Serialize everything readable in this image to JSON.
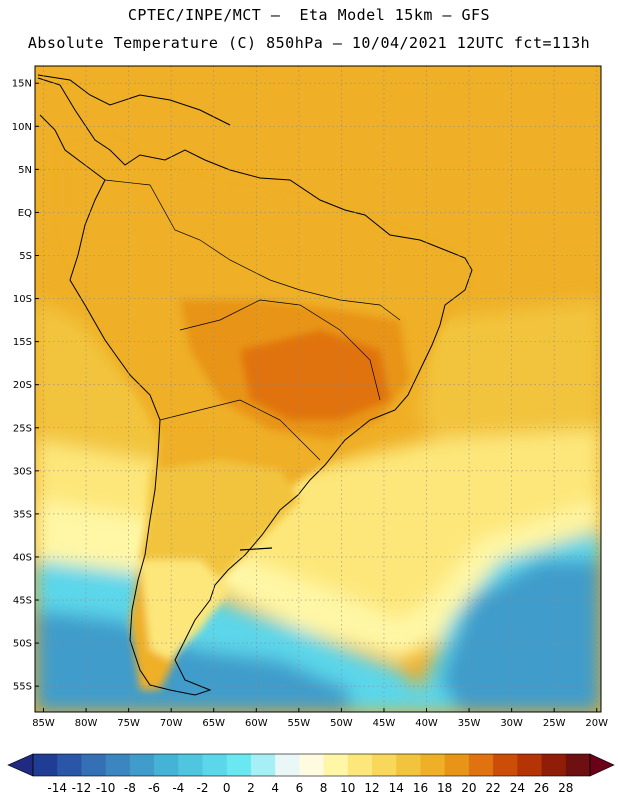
{
  "title": {
    "line1": "CPTEC/INPE/MCT –  Eta Model 15km – GFS",
    "line2": "Absolute Temperature (C) 850hPa – 10/04/2021 12UTC fct=113h"
  },
  "latitude_labels": [
    "15N",
    "10N",
    "5N",
    "EQ",
    "5S",
    "10S",
    "15S",
    "20S",
    "25S",
    "30S",
    "35S",
    "40S",
    "45S",
    "50S",
    "55S"
  ],
  "latitude_values": [
    15,
    10,
    5,
    0,
    -5,
    -10,
    -15,
    -20,
    -25,
    -30,
    -35,
    -40,
    -45,
    -50,
    -55
  ],
  "longitude_labels": [
    "85W",
    "80W",
    "75W",
    "70W",
    "65W",
    "60W",
    "55W",
    "50W",
    "45W",
    "40W",
    "35W",
    "30W",
    "25W",
    "20W"
  ],
  "longitude_values": [
    -85,
    -80,
    -75,
    -70,
    -65,
    -60,
    -55,
    -50,
    -45,
    -40,
    -35,
    -30,
    -25,
    -20
  ],
  "colorbar": {
    "labels": [
      "-14",
      "-12",
      "-10",
      "-8",
      "-6",
      "-4",
      "-2",
      "0",
      "2",
      "4",
      "6",
      "8",
      "10",
      "12",
      "14",
      "16",
      "18",
      "20",
      "22",
      "24",
      "26",
      "28"
    ],
    "colors": [
      "#1f3d94",
      "#2a56a8",
      "#3470b5",
      "#3b86c0",
      "#3f9ccb",
      "#45b3d6",
      "#4fc5e0",
      "#5cd6ea",
      "#6ae8f2",
      "#a6f0f5",
      "#e9f8f6",
      "#fffbe0",
      "#fff7a6",
      "#fde77a",
      "#f8d75a",
      "#f2c43d",
      "#efaf26",
      "#e89418",
      "#e0730f",
      "#cc4d08",
      "#b53405",
      "#8f1d07",
      "#6e0f12"
    ],
    "left_arrow_color": "#1f2a80",
    "right_arrow_color": "#6b0019"
  },
  "map": {
    "lon_range": [
      -86,
      -19.5
    ],
    "lat_range": [
      -58,
      17
    ],
    "ocean_colors": {
      "warm": "#efaf26",
      "mild": "#f2c43d",
      "cool": "#fde77a",
      "pale": "#fff7a6",
      "cold": "#5cd6ea",
      "colder": "#3f9ccb"
    },
    "land_colors": {
      "north": "#efaf26",
      "center": "#e89418",
      "hot": "#e0730f",
      "south": "#f2c43d",
      "patagonia": "#fde77a"
    }
  }
}
